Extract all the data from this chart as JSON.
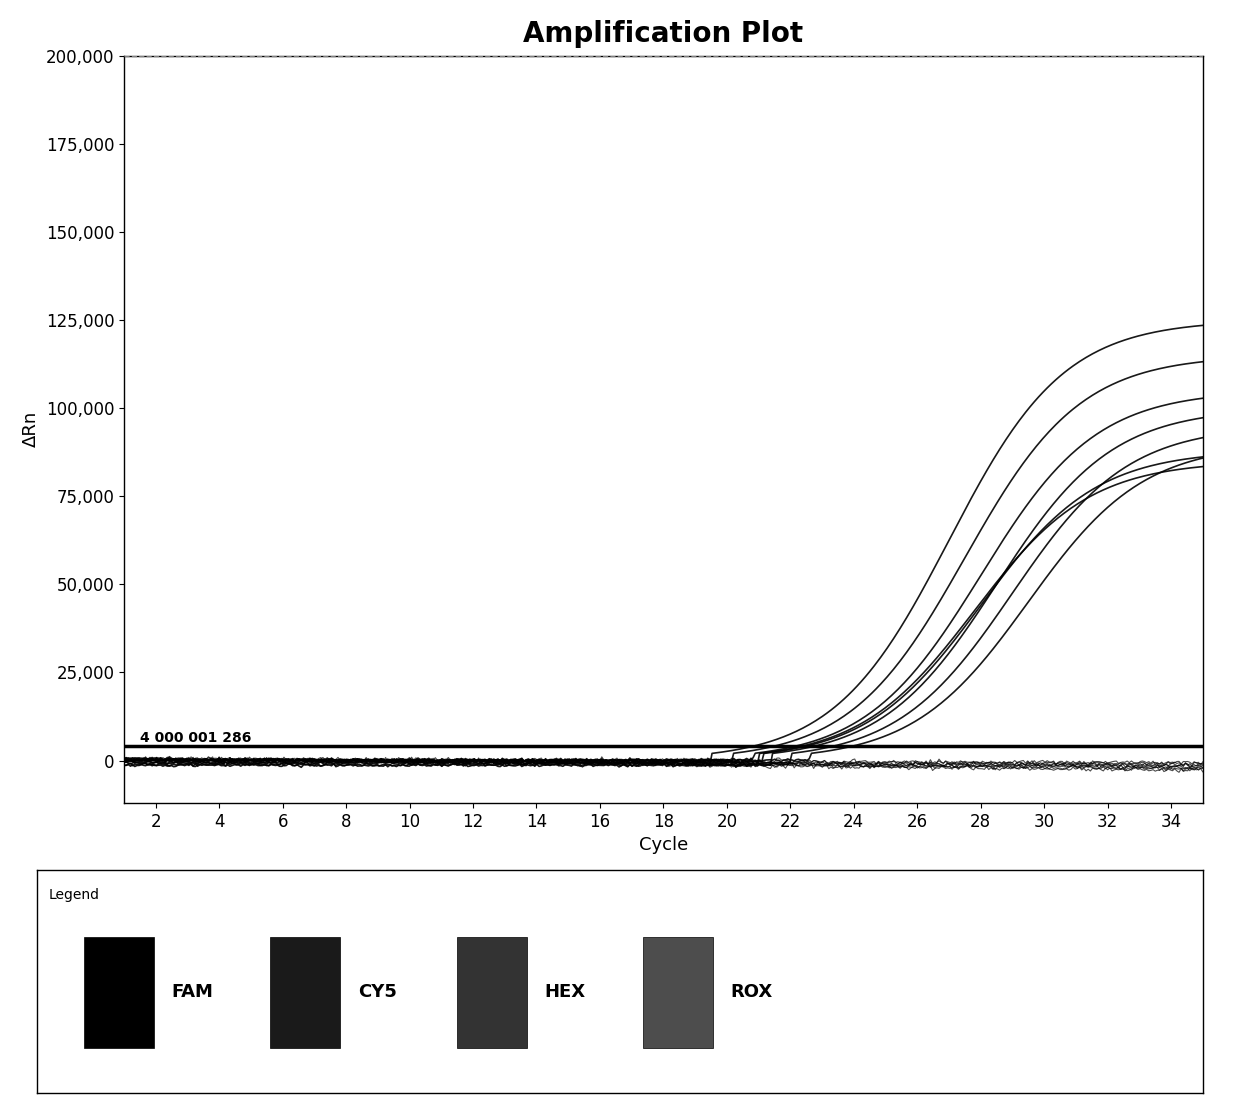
{
  "title": "Amplification Plot",
  "xlabel": "Cycle",
  "ylabel": "ΔRn",
  "xlim": [
    1,
    35
  ],
  "ylim": [
    -12000,
    200000
  ],
  "yticks": [
    0,
    25000,
    50000,
    75000,
    100000,
    125000,
    150000,
    175000,
    200000
  ],
  "xticks": [
    2,
    4,
    6,
    8,
    10,
    12,
    14,
    16,
    18,
    20,
    22,
    24,
    26,
    28,
    30,
    32,
    34
  ],
  "threshold_value": 4000,
  "threshold_labels": [
    "4",
    "000",
    "001",
    "286"
  ],
  "dashed_line_y": 200000,
  "background_color": "#ffffff",
  "plot_bg_color": "#ffffff",
  "line_color": "#000000",
  "threshold_color": "#000000",
  "legend_entries": [
    "FAM",
    "CY5",
    "HEX",
    "ROX"
  ],
  "legend_colors": [
    "#000000",
    "#1a1a1a",
    "#333333",
    "#4d4d4d"
  ],
  "title_fontsize": 20,
  "axis_label_fontsize": 13,
  "tick_fontsize": 12,
  "num_amplifying_curves": 8,
  "num_flat_curves": 8,
  "sigmoid_start_cycles": [
    23,
    23.5,
    24,
    24.5,
    25,
    25.5,
    24,
    23.8
  ],
  "sigmoid_max_values": [
    125000,
    115000,
    105000,
    100000,
    95000,
    90000,
    88000,
    85000
  ],
  "flat_end_values": [
    -2000,
    -3000,
    -4000,
    -5000,
    -6000,
    -7000,
    -8000,
    -9000
  ]
}
